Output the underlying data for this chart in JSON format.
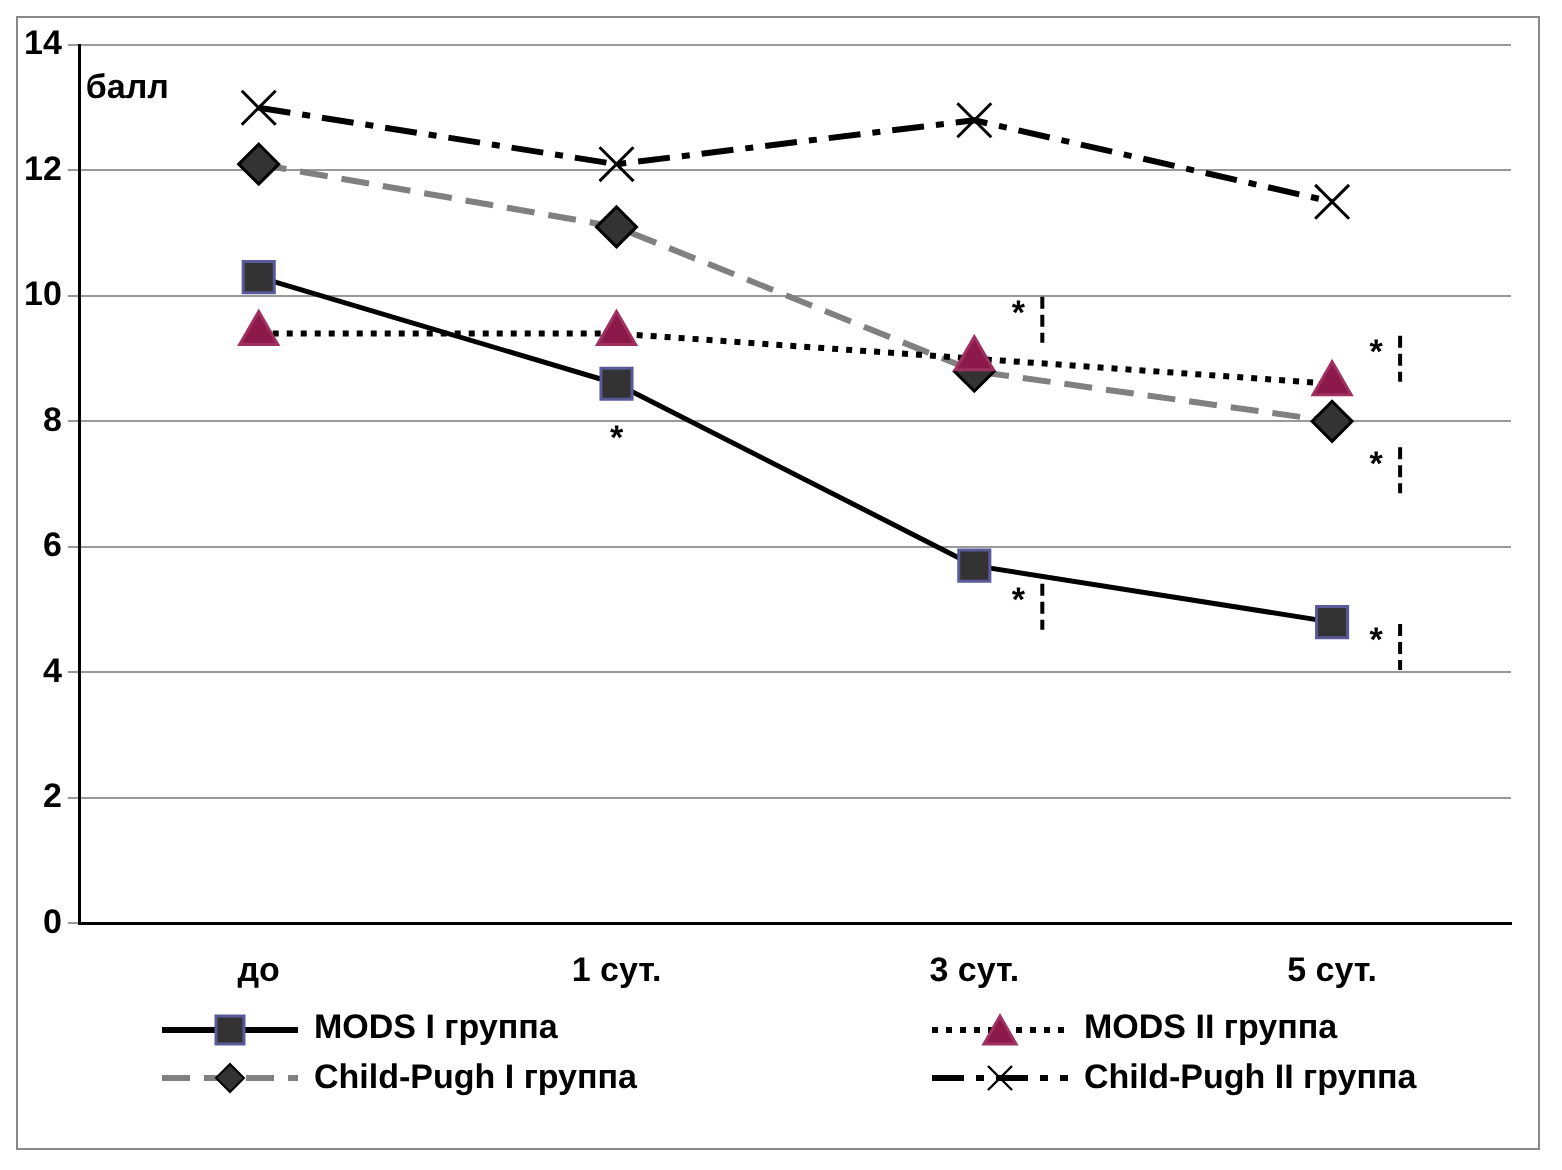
{
  "chart_data": {
    "type": "line",
    "ylabel": "балл",
    "categories": [
      "до",
      "1 сут.",
      "3 сут.",
      "5 сут."
    ],
    "series": [
      {
        "name": "MODS I группа",
        "color": "#000000",
        "values": [
          10.3,
          8.6,
          5.7,
          4.8
        ],
        "marker": "square",
        "line_style": "solid"
      },
      {
        "name": "MODS II группа",
        "color": "#000000",
        "values": [
          9.4,
          9.4,
          9.0,
          8.6
        ],
        "marker": "triangle",
        "line_style": "dotted"
      },
      {
        "name": "Child-Pugh I группа",
        "color": "#808080",
        "values": [
          12.1,
          11.1,
          8.8,
          8.0
        ],
        "marker": "diamond",
        "line_style": "dashed"
      },
      {
        "name": "Child-Pugh II группа",
        "color": "#000000",
        "values": [
          13.0,
          12.1,
          12.8,
          11.5
        ],
        "marker": "cross",
        "line_style": "dashdot"
      }
    ],
    "ylim": [
      0,
      14
    ],
    "yticks": [
      0,
      2,
      4,
      6,
      8,
      10,
      12,
      14
    ],
    "grid": "y",
    "legend": "bottom",
    "annotations": [
      "*",
      "*",
      "*",
      "*",
      "*",
      "*"
    ]
  }
}
